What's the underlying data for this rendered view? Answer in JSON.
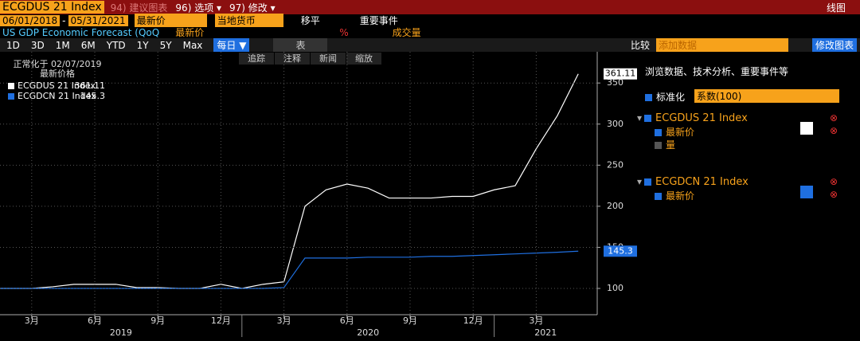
{
  "ui": {
    "topbar": {
      "ticker": "ECGDUS 21 Index",
      "suggest": "94) 建议图表",
      "options": "96) 选项 ▾",
      "edit": "97) 修改 ▾",
      "mode": "线图"
    },
    "row2": {
      "start": "06/01/2018",
      "end": "05/31/2021",
      "field": "最新价",
      "currency": "当地货币",
      "shift": "移平",
      "events": "重要事件"
    },
    "row3": {
      "desc": "US GDP Economic Forecast (QoQ",
      "field": "最新价",
      "pct": "%",
      "volume": "成交量"
    },
    "periods": [
      "1D",
      "3D",
      "1M",
      "6M",
      "YTD",
      "1Y",
      "5Y",
      "Max"
    ],
    "freq": "每日 ▼",
    "table": "表",
    "compare": "比较",
    "add_placeholder": "添加数据",
    "edit_chart": "修改图表",
    "chart_tools": [
      "追踪",
      "注释",
      "新闻",
      "缩放"
    ],
    "legend_head": [
      "正常化于 02/07/2019",
      "最新价格"
    ],
    "panel": {
      "hint": "浏览数据、技术分析、重要事件等",
      "normalize": "标准化",
      "factor": "系数(100)",
      "items": [
        {
          "name": "ECGDUS 21 Index",
          "fields": [
            "最新价",
            "量"
          ]
        },
        {
          "name": "ECGDCN 21 Index",
          "fields": [
            "最新价"
          ]
        }
      ]
    }
  },
  "chart_data": {
    "type": "line",
    "grid": true,
    "x": [
      "2019-01",
      "2019-02",
      "2019-03",
      "2019-04",
      "2019-05",
      "2019-06",
      "2019-07",
      "2019-08",
      "2019-09",
      "2019-10",
      "2019-11",
      "2019-12",
      "2020-01",
      "2020-02",
      "2020-03",
      "2020-04",
      "2020-05",
      "2020-06",
      "2020-07",
      "2020-08",
      "2020-09",
      "2020-10",
      "2020-11",
      "2020-12",
      "2021-01",
      "2021-02",
      "2021-03",
      "2021-04",
      "2021-05"
    ],
    "series": [
      {
        "name": "ECGDUS 21 Index",
        "color": "#ffffff",
        "values": [
          100,
          100,
          100,
          102,
          105,
          105,
          105,
          101,
          101,
          100,
          100,
          105,
          100,
          105,
          108,
          200,
          220,
          227,
          222,
          210,
          210,
          210,
          212,
          212,
          220,
          225,
          270,
          310,
          361.11
        ]
      },
      {
        "name": "ECGDCN 21 Index",
        "color": "#1f6fe0",
        "values": [
          100,
          100,
          100,
          100,
          100,
          100,
          100,
          100,
          100,
          100,
          100,
          100,
          100,
          100,
          101,
          137,
          137,
          137,
          138,
          138,
          138,
          139,
          139,
          140,
          141,
          142,
          143,
          144,
          145.3
        ]
      }
    ],
    "ylim": [
      68,
      388
    ],
    "yticks": [
      100,
      150,
      200,
      250,
      300,
      350
    ],
    "xticks": [
      {
        "value": "2019-03",
        "label": "3月"
      },
      {
        "value": "2019-06",
        "label": "6月"
      },
      {
        "value": "2019-09",
        "label": "9月"
      },
      {
        "value": "2019-12",
        "label": "12月"
      },
      {
        "value": "2020-03",
        "label": "3月"
      },
      {
        "value": "2020-06",
        "label": "6月"
      },
      {
        "value": "2020-09",
        "label": "9月"
      },
      {
        "value": "2020-12",
        "label": "12月"
      },
      {
        "value": "2021-03",
        "label": "3月"
      }
    ],
    "year_labels": [
      "2019",
      "2020",
      "2021"
    ]
  }
}
